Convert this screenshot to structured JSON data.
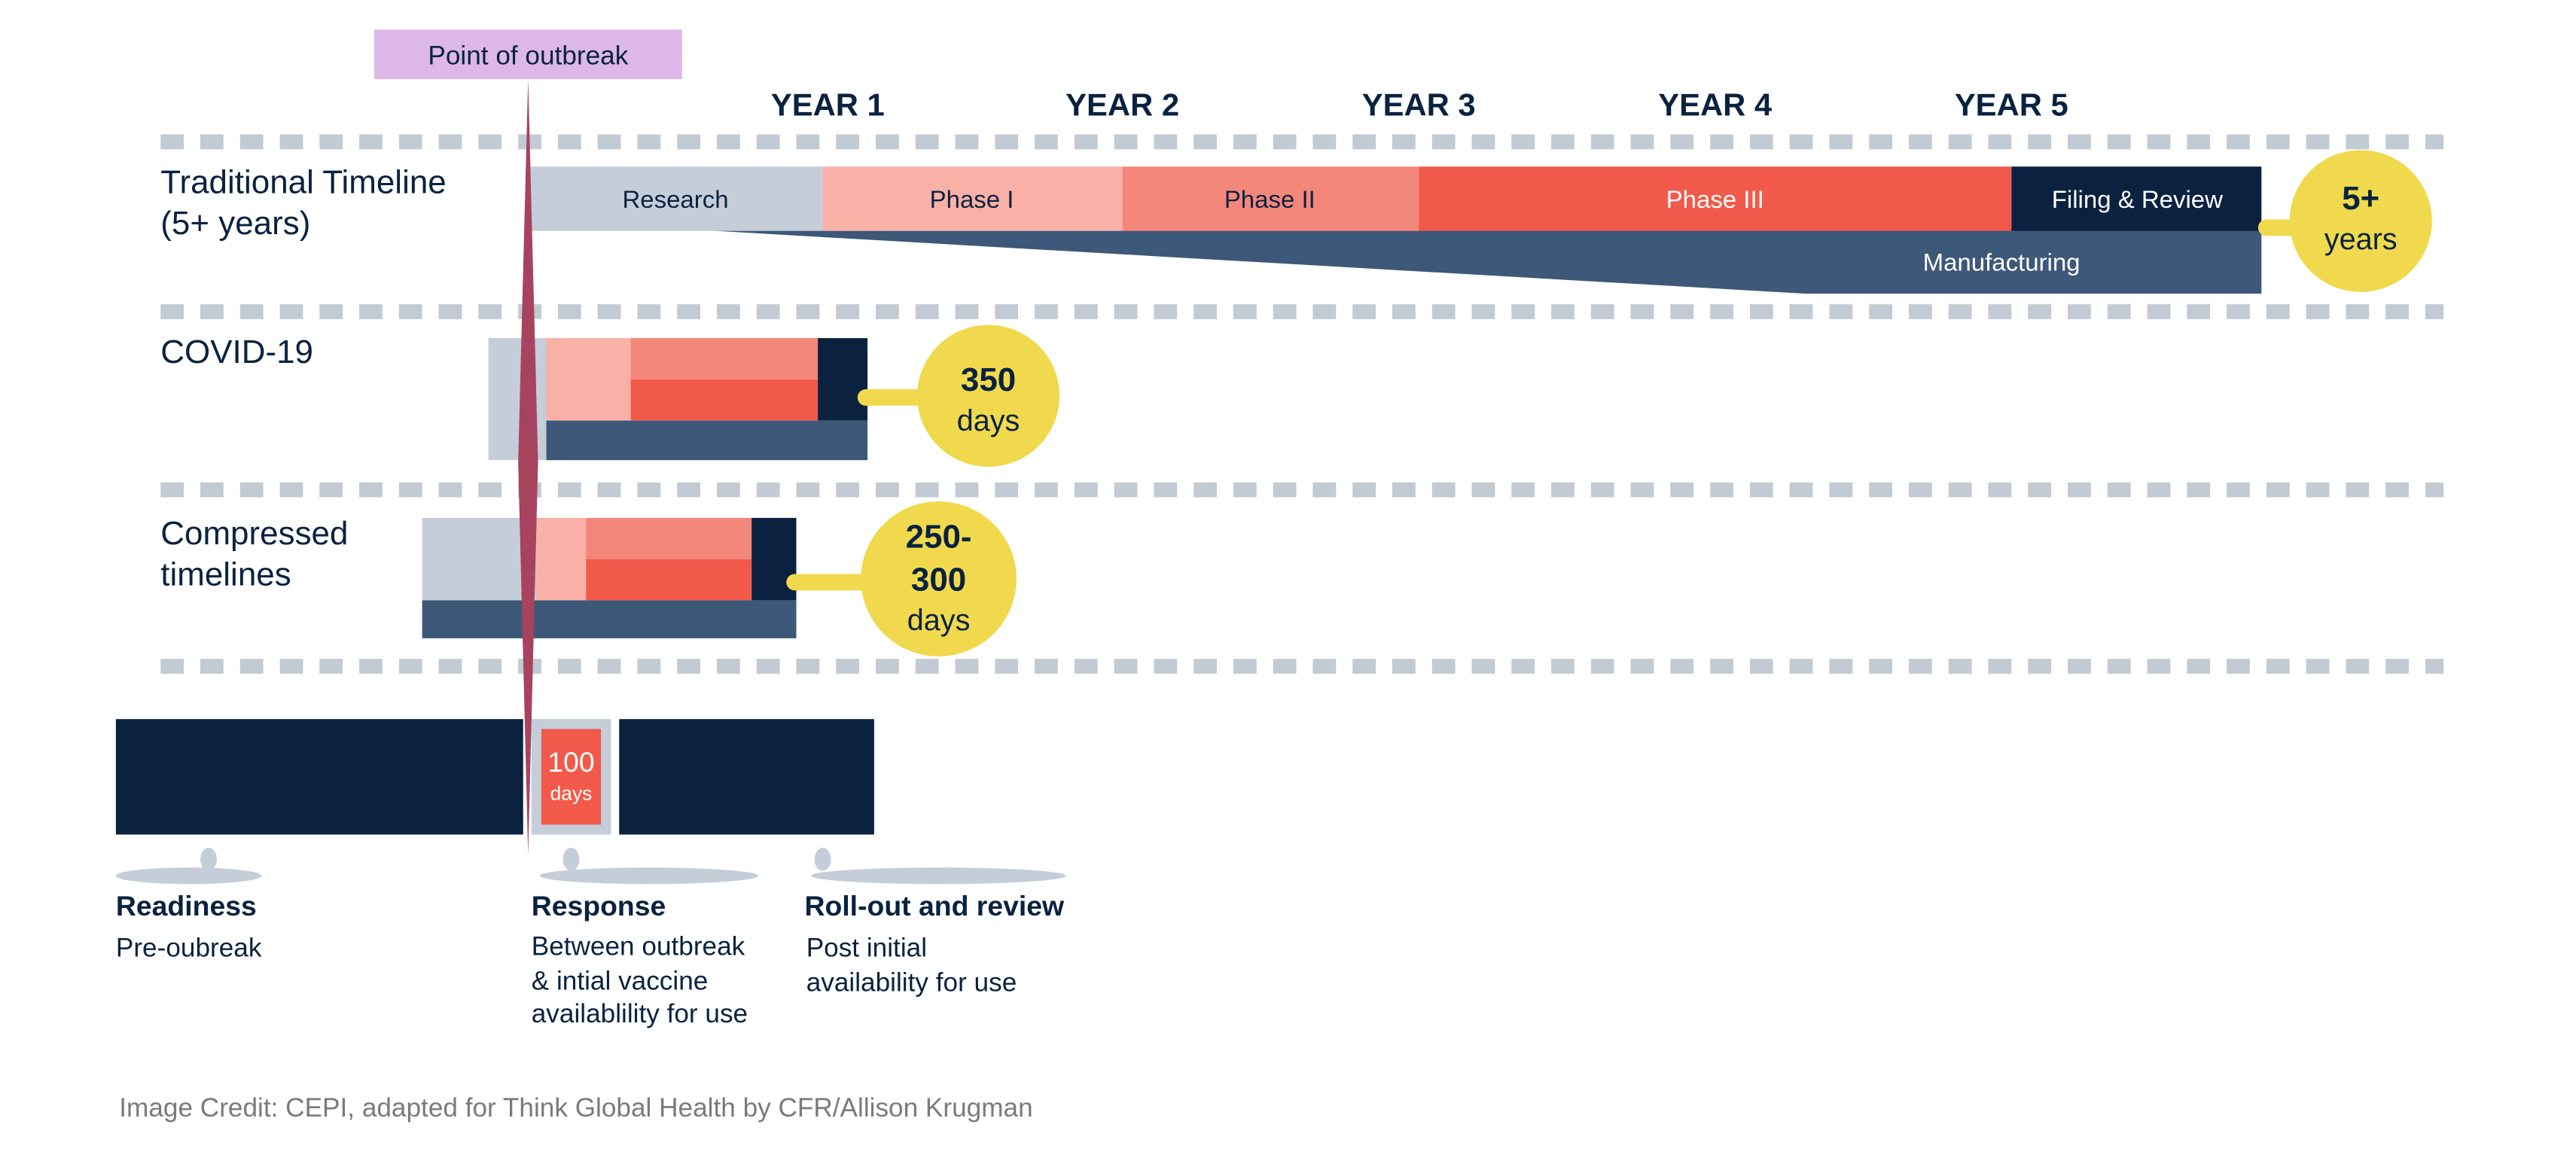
{
  "outbreak_label": "Point of outbreak",
  "years": [
    "YEAR 1",
    "YEAR 2",
    "YEAR 3",
    "YEAR 4",
    "YEAR 5"
  ],
  "rows": {
    "traditional": {
      "label_line1": "Traditional Timeline",
      "label_line2": "(5+ years)",
      "phases": [
        "Research",
        "Phase I",
        "Phase II",
        "Phase III",
        "Filing & Review"
      ],
      "manufacturing": "Manufacturing",
      "badge_line1": "5+",
      "badge_line2": "years"
    },
    "covid": {
      "label": "COVID-19",
      "badge_line1": "350",
      "badge_line2": "days"
    },
    "compressed": {
      "label_line1": "Compressed",
      "label_line2": "timelines",
      "badge_line1": "250-",
      "badge_line2": "300",
      "badge_line3": "days"
    }
  },
  "hundred_days": {
    "number": "100",
    "unit": "days"
  },
  "stages": [
    {
      "title": "Readiness",
      "desc": [
        "Pre-oubreak"
      ]
    },
    {
      "title": "Response",
      "desc": [
        "Between outbreak",
        "& intial vaccine",
        "availablility for use"
      ]
    },
    {
      "title": "Roll-out and review",
      "desc": [
        "Post initial",
        "availability for use"
      ]
    }
  ],
  "credit": "Image Credit: CEPI, adapted for Think Global Health by CFR/Allison Krugman",
  "colors": {
    "navy": "#0a2240",
    "slate": "#3d5878",
    "grey_blue": "#c5ced8",
    "dash": "#c2cad4",
    "pink_light": "#f9b0a6",
    "salmon": "#f4877b",
    "red": "#f15a4a",
    "yellow": "#f0d94c",
    "lavender": "#dcb7e8",
    "outbreak_line": "#a7435e",
    "grey_text": "#7a7a7a"
  }
}
